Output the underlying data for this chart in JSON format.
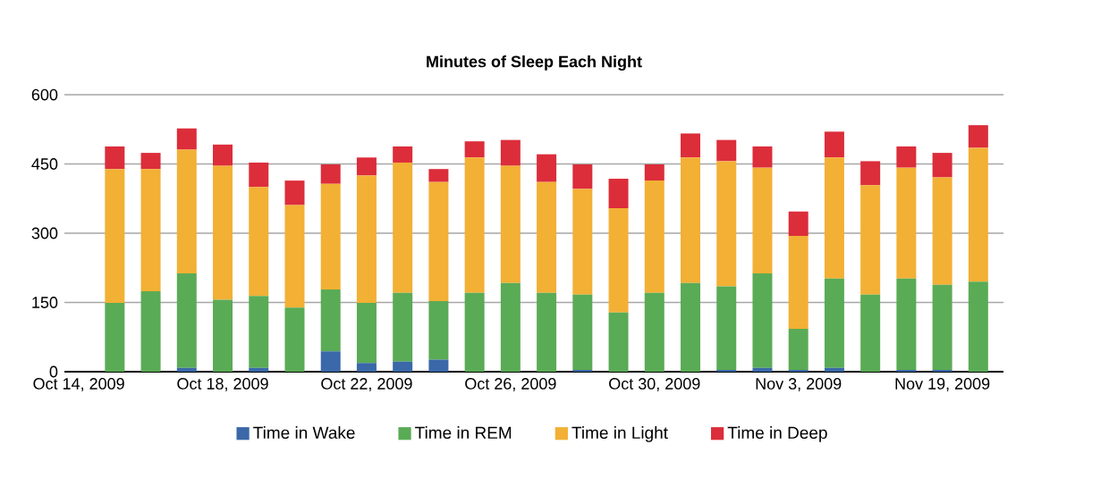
{
  "chart_data": {
    "type": "bar",
    "stacked": true,
    "title": "Minutes of Sleep Each Night",
    "categories": [
      "Oct 14, 2009",
      null,
      null,
      null,
      "Oct 18, 2009",
      null,
      null,
      null,
      "Oct 22, 2009",
      null,
      null,
      null,
      "Oct 26, 2009",
      null,
      null,
      null,
      "Oct 30, 2009",
      null,
      null,
      null,
      "Nov 3, 2009",
      null,
      null,
      null,
      "Nov 19, 2009",
      null
    ],
    "series": [
      {
        "name": "Time in Wake",
        "color": "#3a68a8",
        "values": [
          null,
          0,
          0,
          8,
          0,
          8,
          0,
          44,
          19,
          22,
          26,
          0,
          0,
          0,
          4,
          0,
          0,
          0,
          4,
          8,
          4,
          8,
          0,
          4,
          4,
          0
        ]
      },
      {
        "name": "Time in REM",
        "color": "#5aab55",
        "values": [
          null,
          149,
          174,
          205,
          156,
          156,
          139,
          134,
          130,
          149,
          127,
          171,
          192,
          171,
          163,
          128,
          171,
          192,
          181,
          205,
          89,
          194,
          167,
          198,
          184,
          195
        ]
      },
      {
        "name": "Time in Light",
        "color": "#f2b035",
        "values": [
          null,
          290,
          265,
          268,
          290,
          236,
          222,
          229,
          276,
          282,
          258,
          293,
          254,
          240,
          229,
          226,
          243,
          272,
          271,
          229,
          201,
          262,
          237,
          240,
          233,
          290
        ]
      },
      {
        "name": "Time in Deep",
        "color": "#dc2d3a",
        "values": [
          null,
          49,
          35,
          46,
          46,
          53,
          53,
          42,
          39,
          35,
          28,
          35,
          56,
          60,
          53,
          64,
          35,
          52,
          46,
          46,
          53,
          56,
          52,
          46,
          53,
          49
        ]
      }
    ],
    "ylim": [
      0,
      600
    ],
    "yticks": [
      0,
      150,
      300,
      450,
      600
    ],
    "grid": "y",
    "legend": "bottom"
  }
}
